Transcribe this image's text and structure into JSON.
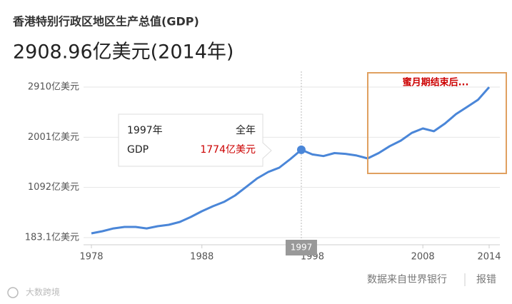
{
  "chart_data": {
    "type": "line",
    "title": "香港特别行政区地区生产总值(GDP)",
    "subtitle": "2908.96亿美元(2014年)",
    "x": [
      1978,
      1979,
      1980,
      1981,
      1982,
      1983,
      1984,
      1985,
      1986,
      1987,
      1988,
      1989,
      1990,
      1991,
      1992,
      1993,
      1994,
      1995,
      1996,
      1997,
      1998,
      1999,
      2000,
      2001,
      2002,
      2003,
      2004,
      2005,
      2006,
      2007,
      2008,
      2009,
      2010,
      2011,
      2012,
      2013,
      2014
    ],
    "values": [
      260,
      300,
      350,
      377,
      377,
      350,
      390,
      416,
      467,
      558,
      661,
      752,
      830,
      946,
      1100,
      1256,
      1372,
      1450,
      1605,
      1774,
      1690,
      1660,
      1715,
      1700,
      1670,
      1618,
      1715,
      1840,
      1940,
      2080,
      2160,
      2110,
      2250,
      2420,
      2550,
      2680,
      2908.96
    ],
    "color": "#4a86d8",
    "xlim": [
      1978,
      2014
    ],
    "xticks": [
      1978,
      1988,
      1998,
      2008,
      2014
    ],
    "ylim": [
      183.1,
      2910
    ],
    "yticks": [
      {
        "value": 183.1,
        "label": "183.1亿美元"
      },
      {
        "value": 1092,
        "label": "1092亿美元"
      },
      {
        "value": 2001,
        "label": "2001亿美元"
      },
      {
        "value": 2910,
        "label": "2910亿美元"
      }
    ],
    "grid": true,
    "hover_x": "1997",
    "tooltip": {
      "x_label": "1997年",
      "period": "全年",
      "metric": "GDP",
      "value_label": "1774亿美元"
    },
    "annotation": "蜜月期结束后...",
    "source": "数据来自世界银行",
    "report": "报错",
    "watermark": "大数跨境"
  }
}
